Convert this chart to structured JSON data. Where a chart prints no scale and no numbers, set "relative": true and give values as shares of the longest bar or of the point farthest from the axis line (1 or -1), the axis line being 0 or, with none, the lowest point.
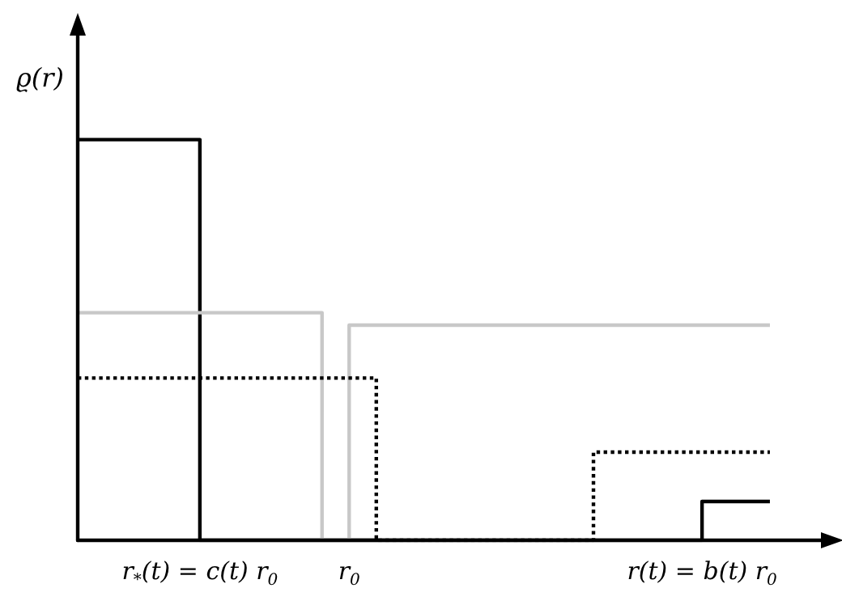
{
  "chart_data": {
    "type": "step",
    "relative": true,
    "ylabel": "ϱ(r)",
    "categories": [
      null,
      null,
      null,
      null,
      null,
      null,
      null,
      null,
      null,
      "r$_{*}$(t) = c(t) r$_{0}$",
      null,
      null,
      null,
      null,
      null,
      null,
      null,
      null,
      null,
      null,
      "r$_{0}$",
      null,
      null,
      null,
      null,
      null,
      null,
      null,
      null,
      null,
      null,
      null,
      null,
      null,
      null,
      null,
      null,
      null,
      null,
      null,
      null,
      null,
      null,
      null,
      null,
      null,
      "r(t) = b(t) r$_{0}$",
      null,
      null,
      null,
      null,
      null,
      null,
      null,
      null,
      null
    ],
    "series": [
      {
        "color": "#000000",
        "line_style": "solid",
        "values": [
          1,
          1,
          1,
          1,
          1,
          1,
          1,
          1,
          1,
          1,
          0,
          0,
          0,
          0,
          0,
          0,
          0,
          0,
          0,
          0,
          0,
          0,
          0,
          0,
          0,
          0,
          0,
          0,
          0,
          0,
          0,
          0,
          0,
          0,
          0,
          0,
          0,
          0,
          0,
          0,
          0,
          0,
          0,
          0,
          0,
          0,
          0,
          0.097,
          0.097,
          0.097,
          0.097,
          0.097,
          null,
          null,
          null,
          null
        ]
      },
      {
        "color": "#c8c8c8",
        "line_style": "solid",
        "values": [
          0.568,
          0.568,
          0.568,
          0.568,
          0.568,
          0.568,
          0.568,
          0.568,
          0.568,
          0.568,
          0.568,
          0.568,
          0.568,
          0.568,
          0.568,
          0.568,
          0.568,
          0.568,
          0.568,
          0,
          0,
          0.537,
          0.537,
          0.537,
          0.537,
          0.537,
          0.537,
          0.537,
          0.537,
          0.537,
          0.537,
          0.537,
          0.537,
          0.537,
          0.537,
          0.537,
          0.537,
          0.537,
          0.537,
          0.537,
          0.537,
          0.537,
          0.537,
          0.537,
          0.537,
          0.537,
          0.537,
          0.537,
          0.537,
          0.537,
          0.537,
          0.537,
          null,
          null,
          null,
          null
        ]
      },
      {
        "color": "#000000",
        "line_style": "dotted",
        "values": [
          0.405,
          0.405,
          0.405,
          0.405,
          0.405,
          0.405,
          0.405,
          0.405,
          0.405,
          0.405,
          0.405,
          0.405,
          0.405,
          0.405,
          0.405,
          0.405,
          0.405,
          0.405,
          0.405,
          0.405,
          0.405,
          0.405,
          0.405,
          0,
          0,
          0,
          0,
          0,
          0,
          0,
          0,
          0,
          0,
          0,
          0,
          0,
          0,
          0,
          0,
          0.22,
          0.22,
          0.22,
          0.22,
          0.22,
          0.22,
          0.22,
          0.22,
          0.22,
          0.22,
          0.22,
          0.22,
          0.22,
          null,
          null,
          null,
          null
        ]
      }
    ]
  }
}
